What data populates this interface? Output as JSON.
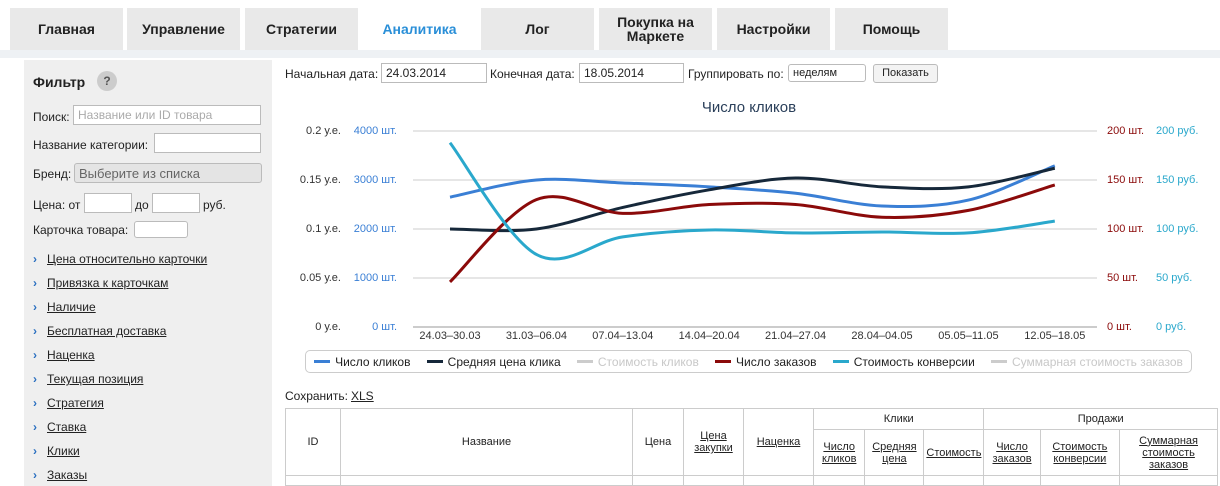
{
  "tabs": [
    "Главная",
    "Управление",
    "Стратегии",
    "Аналитика",
    "Лог",
    "Покупка на Маркете",
    "Настройки",
    "Помощь"
  ],
  "active_tab": 3,
  "sidebar": {
    "title": "Фильтр",
    "help": "?",
    "search_label": "Поиск:",
    "search_placeholder": "Название или ID товара",
    "category_label": "Название категории:",
    "brand_label": "Бренд:",
    "brand_placeholder": "Выберите из списка",
    "price_from": "Цена: от",
    "price_to": "до",
    "price_unit": "руб.",
    "card_label": "Карточка товара:",
    "links": [
      "Цена относительно карточки",
      "Привязка к карточкам",
      "Наличие",
      "Бесплатная доставка",
      "Наценка",
      "Текущая позиция",
      "Стратегия",
      "Ставка",
      "Клики",
      "Заказы"
    ]
  },
  "form": {
    "start_label": "Начальная дата:",
    "start_value": "24.03.2014",
    "end_label": "Конечная дата:",
    "end_value": "18.05.2014",
    "group_label": "Группировать по:",
    "group_value": "неделям",
    "button": "Показать"
  },
  "chart_data": {
    "type": "line",
    "title": "Число кликов",
    "categories": [
      "24.03–30.03",
      "31.03–06.04",
      "07.04–13.04",
      "14.04–20.04",
      "21.04–27.04",
      "28.04–04.05",
      "05.05–11.05",
      "12.05–18.05"
    ],
    "grid": true,
    "axes": [
      {
        "side": "left",
        "color": "#333333",
        "lim": [
          0,
          0.2
        ],
        "ticks": [
          {
            "value": 0,
            "label": "0 у.е."
          },
          {
            "value": 0.05,
            "label": "0.05 у.е."
          },
          {
            "value": 0.1,
            "label": "0.1 у.е."
          },
          {
            "value": 0.15,
            "label": "0.15 у.е."
          },
          {
            "value": 0.2,
            "label": "0.2 у.е."
          }
        ]
      },
      {
        "side": "left",
        "color": "#3a7fd5",
        "lim": [
          0,
          4000
        ],
        "ticks": [
          {
            "value": 0,
            "label": "0 шт."
          },
          {
            "value": 1000,
            "label": "1000 шт."
          },
          {
            "value": 2000,
            "label": "2000 шт."
          },
          {
            "value": 3000,
            "label": "3000 шт."
          },
          {
            "value": 4000,
            "label": "4000 шт."
          }
        ]
      },
      {
        "side": "right",
        "color": "#8b0a0a",
        "lim": [
          0,
          200
        ],
        "ticks": [
          {
            "value": 0,
            "label": "0 шт."
          },
          {
            "value": 50,
            "label": "50 шт."
          },
          {
            "value": 100,
            "label": "100 шт."
          },
          {
            "value": 150,
            "label": "150 шт."
          },
          {
            "value": 200,
            "label": "200 шт."
          }
        ]
      },
      {
        "side": "right",
        "color": "#2aa8cc",
        "lim": [
          0,
          200
        ],
        "ticks": [
          {
            "value": 0,
            "label": "0 руб."
          },
          {
            "value": 50,
            "label": "50 руб."
          },
          {
            "value": 100,
            "label": "100 руб."
          },
          {
            "value": 150,
            "label": "150 руб."
          },
          {
            "value": 200,
            "label": "200 руб."
          }
        ]
      }
    ],
    "series": [
      {
        "name": "Число кликов",
        "color": "#3a7fd5",
        "axis": 1,
        "visible": true,
        "values": [
          2650,
          3000,
          2940,
          2860,
          2730,
          2470,
          2590,
          3290
        ]
      },
      {
        "name": "Средняя цена клика",
        "color": "#16283a",
        "axis": 0,
        "visible": true,
        "values": [
          0.1,
          0.1,
          0.122,
          0.14,
          0.152,
          0.143,
          0.143,
          0.162
        ]
      },
      {
        "name": "Стоимость кликов",
        "color": "#cccccc",
        "axis": 0,
        "visible": false,
        "values": [
          null,
          null,
          null,
          null,
          null,
          null,
          null,
          null
        ]
      },
      {
        "name": "Число заказов",
        "color": "#8b0a0a",
        "axis": 2,
        "visible": true,
        "values": [
          46,
          130,
          116,
          125,
          125,
          112,
          119,
          145
        ]
      },
      {
        "name": "Стоимость конверсии",
        "color": "#2aa8cc",
        "axis": 3,
        "visible": true,
        "values": [
          188,
          74,
          92,
          99,
          96,
          97,
          96,
          108
        ]
      },
      {
        "name": "Суммарная стоимость заказов",
        "color": "#cccccc",
        "axis": 0,
        "visible": false,
        "values": [
          null,
          null,
          null,
          null,
          null,
          null,
          null,
          null
        ]
      }
    ]
  },
  "save": {
    "label": "Сохранить:",
    "link": "XLS"
  },
  "table": {
    "id": "ID",
    "name": "Название",
    "price": "Цена",
    "purchase": "Цена закупки",
    "markup": "Наценка",
    "clicks_group": "Клики",
    "sales_group": "Продажи",
    "clicks_cols": [
      "Число кликов",
      "Средняя цена",
      "Стоимость"
    ],
    "sales_cols": [
      "Число заказов",
      "Стоимость конверсии",
      "Суммарная стоимость заказов"
    ]
  }
}
